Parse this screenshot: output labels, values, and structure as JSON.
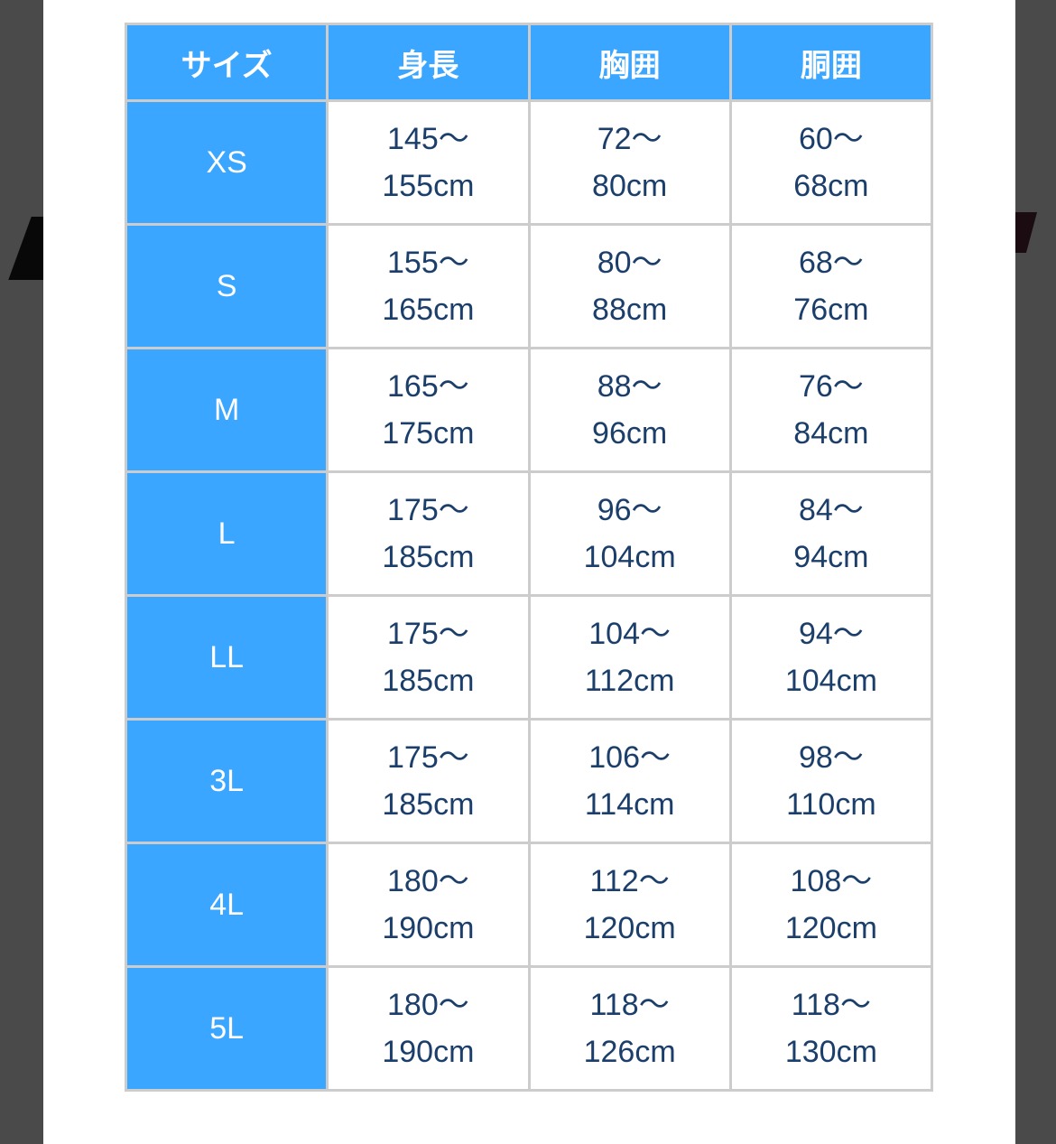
{
  "colors": {
    "header_bg": "#3ba6ff",
    "text": "#1b3f6a",
    "border": "#cccccc",
    "backdrop": "#4a4a4a"
  },
  "table": {
    "headers": [
      "サイズ",
      "身長",
      "胸囲",
      "胴囲"
    ],
    "rows": [
      {
        "size": "XS",
        "height": [
          "145〜",
          "155cm"
        ],
        "chest": [
          "72〜",
          "80cm"
        ],
        "waist": [
          "60〜",
          "68cm"
        ]
      },
      {
        "size": "S",
        "height": [
          "155〜",
          "165cm"
        ],
        "chest": [
          "80〜",
          "88cm"
        ],
        "waist": [
          "68〜",
          "76cm"
        ]
      },
      {
        "size": "M",
        "height": [
          "165〜",
          "175cm"
        ],
        "chest": [
          "88〜",
          "96cm"
        ],
        "waist": [
          "76〜",
          "84cm"
        ]
      },
      {
        "size": "L",
        "height": [
          "175〜",
          "185cm"
        ],
        "chest": [
          "96〜",
          "104cm"
        ],
        "waist": [
          "84〜",
          "94cm"
        ]
      },
      {
        "size": "LL",
        "height": [
          "175〜",
          "185cm"
        ],
        "chest": [
          "104〜",
          "112cm"
        ],
        "waist": [
          "94〜",
          "104cm"
        ]
      },
      {
        "size": "3L",
        "height": [
          "175〜",
          "185cm"
        ],
        "chest": [
          "106〜",
          "114cm"
        ],
        "waist": [
          "98〜",
          "110cm"
        ]
      },
      {
        "size": "4L",
        "height": [
          "180〜",
          "190cm"
        ],
        "chest": [
          "112〜",
          "120cm"
        ],
        "waist": [
          "108〜",
          "120cm"
        ]
      },
      {
        "size": "5L",
        "height": [
          "180〜",
          "190cm"
        ],
        "chest": [
          "118〜",
          "126cm"
        ],
        "waist": [
          "118〜",
          "130cm"
        ]
      }
    ]
  }
}
